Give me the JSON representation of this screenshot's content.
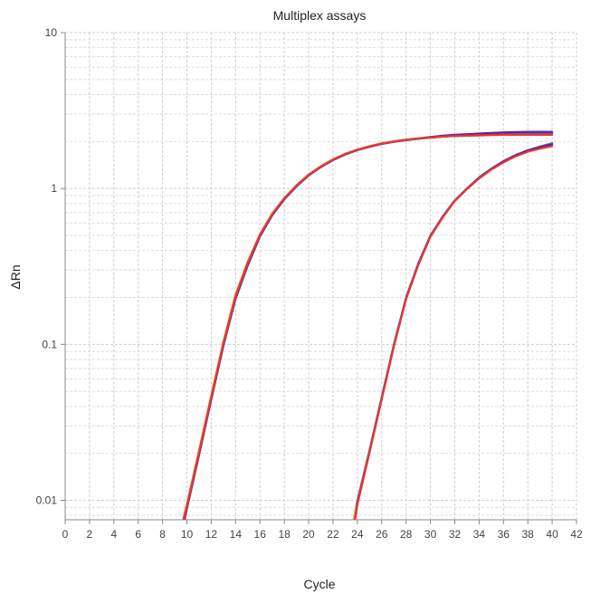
{
  "chart_data": {
    "type": "line",
    "title": "Multiplex assays",
    "xlabel": "Cycle",
    "ylabel": "ΔRn",
    "xlim": [
      0,
      42
    ],
    "ylim": [
      0.0075,
      10
    ],
    "yscale": "log",
    "grid": true,
    "legend": "none",
    "x_ticks": [
      0,
      2,
      4,
      6,
      8,
      10,
      12,
      14,
      16,
      18,
      20,
      22,
      24,
      26,
      28,
      30,
      32,
      34,
      36,
      38,
      40,
      42
    ],
    "y_ticks": [
      {
        "value": 0.01,
        "label": "0.01"
      },
      {
        "value": 0.1,
        "label": "0.1"
      },
      {
        "value": 1,
        "label": "1"
      },
      {
        "value": 10,
        "label": "10"
      }
    ],
    "series": [
      {
        "color": "#2e7d32",
        "x": [
          9.8,
          10,
          11,
          12,
          13,
          14,
          15,
          16,
          17,
          18,
          19,
          20,
          21,
          22,
          23,
          24,
          25,
          26,
          27,
          28,
          29,
          30,
          31,
          32,
          33,
          34,
          35,
          36,
          37,
          38,
          39,
          40
        ],
        "y": [
          0.0075,
          0.009,
          0.02,
          0.045,
          0.1,
          0.2,
          0.33,
          0.5,
          0.68,
          0.86,
          1.04,
          1.22,
          1.38,
          1.53,
          1.66,
          1.77,
          1.86,
          1.94,
          2.0,
          2.05,
          2.09,
          2.13,
          2.16,
          2.18,
          2.2,
          2.22,
          2.24,
          2.25,
          2.26,
          2.27,
          2.28,
          2.28
        ]
      },
      {
        "color": "#f9a825",
        "x": [
          9.7,
          10,
          11,
          12,
          13,
          14,
          15,
          16,
          17,
          18,
          19,
          20,
          21,
          22,
          23,
          24,
          25,
          26,
          27,
          28,
          29,
          30,
          31,
          32,
          33,
          34,
          35,
          36,
          37,
          38,
          39,
          40
        ],
        "y": [
          0.0075,
          0.0095,
          0.021,
          0.047,
          0.105,
          0.21,
          0.34,
          0.51,
          0.69,
          0.87,
          1.05,
          1.23,
          1.39,
          1.54,
          1.67,
          1.78,
          1.87,
          1.95,
          2.01,
          2.06,
          2.1,
          2.14,
          2.17,
          2.19,
          2.21,
          2.23,
          2.24,
          2.25,
          2.26,
          2.27,
          2.27,
          2.27
        ]
      },
      {
        "color": "#00acc1",
        "x": [
          9.8,
          10,
          11,
          12,
          13,
          14,
          15,
          16,
          17,
          18,
          19,
          20,
          21,
          22,
          23,
          24,
          25,
          26,
          27,
          28,
          29,
          30,
          31,
          32,
          33,
          34,
          35,
          36,
          37,
          38,
          39,
          40
        ],
        "y": [
          0.0075,
          0.0088,
          0.0195,
          0.044,
          0.098,
          0.195,
          0.32,
          0.49,
          0.67,
          0.85,
          1.03,
          1.21,
          1.37,
          1.52,
          1.65,
          1.76,
          1.85,
          1.93,
          1.99,
          2.04,
          2.08,
          2.12,
          2.15,
          2.17,
          2.19,
          2.21,
          2.23,
          2.24,
          2.25,
          2.26,
          2.27,
          2.27
        ]
      },
      {
        "color": "#6a1b9a",
        "x": [
          9.8,
          10,
          11,
          12,
          13,
          14,
          15,
          16,
          17,
          18,
          19,
          20,
          21,
          22,
          23,
          24,
          25,
          26,
          27,
          28,
          29,
          30,
          31,
          32,
          33,
          34,
          35,
          36,
          37,
          38,
          39,
          40
        ],
        "y": [
          0.0075,
          0.0089,
          0.0198,
          0.0445,
          0.099,
          0.198,
          0.325,
          0.495,
          0.675,
          0.855,
          1.035,
          1.215,
          1.375,
          1.525,
          1.655,
          1.765,
          1.855,
          1.935,
          1.995,
          2.045,
          2.09,
          2.14,
          2.18,
          2.21,
          2.23,
          2.25,
          2.27,
          2.29,
          2.3,
          2.31,
          2.31,
          2.31
        ]
      },
      {
        "color": "#c2185b",
        "x": [
          9.8,
          10,
          11,
          12,
          13,
          14,
          15,
          16,
          17,
          18,
          19,
          20,
          21,
          22,
          23,
          24,
          25,
          26,
          27,
          28,
          29,
          30,
          31,
          32,
          33,
          34,
          35,
          36,
          37,
          38,
          39,
          40
        ],
        "y": [
          0.0075,
          0.009,
          0.0202,
          0.0455,
          0.101,
          0.202,
          0.33,
          0.5,
          0.68,
          0.86,
          1.04,
          1.22,
          1.38,
          1.53,
          1.66,
          1.77,
          1.86,
          1.94,
          2.0,
          2.05,
          2.09,
          2.12,
          2.15,
          2.17,
          2.19,
          2.2,
          2.21,
          2.22,
          2.22,
          2.22,
          2.22,
          2.22
        ]
      },
      {
        "color": "#e53935",
        "x": [
          9.7,
          10,
          11,
          12,
          13,
          14,
          15,
          16,
          17,
          18,
          19,
          20,
          21,
          22,
          23,
          24,
          25,
          26,
          27,
          28,
          29,
          30,
          31,
          32,
          33,
          34,
          35,
          36,
          37,
          38,
          39,
          40
        ],
        "y": [
          0.0075,
          0.0092,
          0.0205,
          0.046,
          0.102,
          0.205,
          0.335,
          0.505,
          0.685,
          0.865,
          1.045,
          1.225,
          1.385,
          1.535,
          1.665,
          1.775,
          1.865,
          1.945,
          2.0,
          2.05,
          2.09,
          2.12,
          2.15,
          2.17,
          2.18,
          2.19,
          2.2,
          2.21,
          2.21,
          2.21,
          2.21,
          2.21
        ]
      },
      {
        "color": "#1565c0",
        "x": [
          23.7,
          24,
          25,
          26,
          27,
          28,
          29,
          30,
          31,
          32,
          33,
          34,
          35,
          36,
          37,
          38,
          39,
          40
        ],
        "y": [
          0.0075,
          0.01,
          0.021,
          0.046,
          0.1,
          0.2,
          0.33,
          0.5,
          0.66,
          0.84,
          1.0,
          1.18,
          1.34,
          1.5,
          1.64,
          1.76,
          1.86,
          1.95
        ]
      },
      {
        "color": "#2e7d32",
        "x": [
          23.8,
          24,
          25,
          26,
          27,
          28,
          29,
          30,
          31,
          32,
          33,
          34,
          35,
          36,
          37,
          38,
          39,
          40
        ],
        "y": [
          0.0075,
          0.0095,
          0.0205,
          0.045,
          0.098,
          0.197,
          0.326,
          0.495,
          0.655,
          0.835,
          0.995,
          1.17,
          1.33,
          1.49,
          1.63,
          1.75,
          1.84,
          1.92
        ]
      },
      {
        "color": "#f9a825",
        "x": [
          23.7,
          24,
          25,
          26,
          27,
          28,
          29,
          30,
          31,
          32,
          33,
          34,
          35,
          36,
          37,
          38,
          39,
          40
        ],
        "y": [
          0.0075,
          0.0098,
          0.0208,
          0.0455,
          0.099,
          0.199,
          0.328,
          0.498,
          0.658,
          0.838,
          0.998,
          1.175,
          1.335,
          1.495,
          1.635,
          1.755,
          1.85,
          1.93
        ]
      },
      {
        "color": "#6a1b9a",
        "x": [
          23.8,
          24,
          25,
          26,
          27,
          28,
          29,
          30,
          31,
          32,
          33,
          34,
          35,
          36,
          37,
          38,
          39,
          40
        ],
        "y": [
          0.0075,
          0.0096,
          0.0206,
          0.0452,
          0.098,
          0.198,
          0.327,
          0.496,
          0.656,
          0.836,
          0.996,
          1.172,
          1.332,
          1.492,
          1.632,
          1.752,
          1.845,
          1.925
        ]
      },
      {
        "color": "#e53935",
        "x": [
          23.8,
          24,
          25,
          26,
          27,
          28,
          29,
          30,
          31,
          32,
          33,
          34,
          35,
          36,
          37,
          38,
          39,
          40
        ],
        "y": [
          0.0075,
          0.0094,
          0.0202,
          0.0445,
          0.097,
          0.195,
          0.322,
          0.49,
          0.65,
          0.83,
          0.99,
          1.16,
          1.32,
          1.47,
          1.61,
          1.72,
          1.8,
          1.87
        ]
      }
    ]
  }
}
